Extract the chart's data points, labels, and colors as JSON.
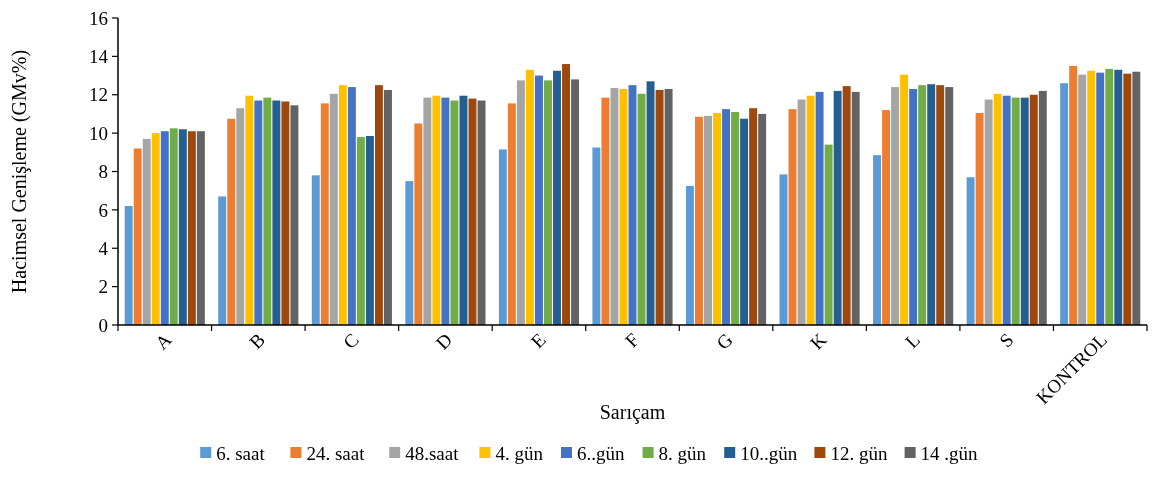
{
  "chart_data": {
    "type": "bar",
    "xlabel": "Sarıçam",
    "ylabel": "Hacimsel Genişleme (GMv%)",
    "categories": [
      "A",
      "B",
      "C",
      "D",
      "E",
      "F",
      "G",
      "K",
      "L",
      "S",
      "KONTROL"
    ],
    "ylim": [
      0,
      16
    ],
    "yticks": [
      0,
      2,
      4,
      6,
      8,
      10,
      12,
      14,
      16
    ],
    "grid": false,
    "legend": "bottom",
    "series": [
      {
        "name": "6. saat",
        "color": "#5b9bd5",
        "values": [
          6.2,
          6.7,
          7.8,
          7.5,
          9.15,
          9.25,
          7.25,
          7.85,
          8.85,
          7.7,
          12.6
        ]
      },
      {
        "name": "24. saat",
        "color": "#ed7d31",
        "values": [
          9.2,
          10.75,
          11.55,
          10.5,
          11.55,
          11.85,
          10.85,
          11.25,
          11.2,
          11.05,
          13.5
        ]
      },
      {
        "name": "48.saat",
        "color": "#a5a5a5",
        "values": [
          9.7,
          11.3,
          12.05,
          11.85,
          12.75,
          12.35,
          10.9,
          11.75,
          12.4,
          11.75,
          13.05
        ]
      },
      {
        "name": "4. gün",
        "color": "#ffc000",
        "values": [
          10.0,
          11.95,
          12.5,
          11.95,
          13.3,
          12.3,
          11.05,
          11.95,
          13.05,
          12.05,
          13.25
        ]
      },
      {
        "name": "6..gün",
        "color": "#4472c4",
        "values": [
          10.1,
          11.7,
          12.4,
          11.85,
          13.0,
          12.5,
          11.25,
          12.15,
          12.3,
          11.95,
          13.15
        ]
      },
      {
        "name": "8. gün",
        "color": "#70ad47",
        "values": [
          10.25,
          11.85,
          9.8,
          11.7,
          12.75,
          12.05,
          11.1,
          9.4,
          12.5,
          11.85,
          13.35
        ]
      },
      {
        "name": "10..gün",
        "color": "#255e91",
        "values": [
          10.2,
          11.7,
          9.85,
          11.95,
          13.25,
          12.7,
          10.75,
          12.2,
          12.55,
          11.85,
          13.3
        ]
      },
      {
        "name": "12. gün",
        "color": "#9e480e",
        "values": [
          10.1,
          11.65,
          12.5,
          11.8,
          13.6,
          12.25,
          11.3,
          12.45,
          12.5,
          12.0,
          13.1
        ]
      },
      {
        "name": "14 .gün",
        "color": "#636363",
        "values": [
          10.1,
          11.45,
          12.25,
          11.7,
          12.8,
          12.3,
          11.0,
          12.15,
          12.4,
          12.2,
          13.2
        ]
      }
    ]
  }
}
